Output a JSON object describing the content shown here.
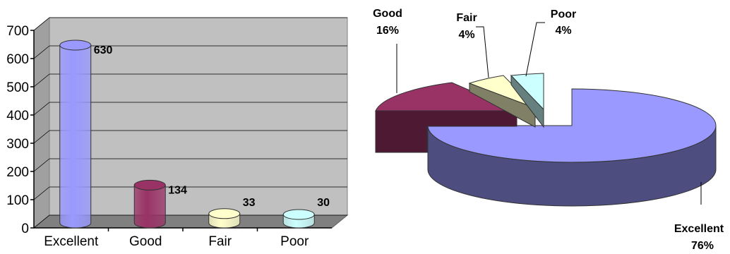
{
  "colors": {
    "Excellent": "#9999ff",
    "Good": "#993366",
    "Fair": "#ffffcc",
    "Poor": "#ccffff",
    "plot_bg": "#c0c0c0"
  },
  "chart_data": [
    {
      "type": "bar",
      "categories": [
        "Excellent",
        "Good",
        "Fair",
        "Poor"
      ],
      "values": [
        630,
        134,
        33,
        30
      ],
      "data_labels": [
        "630",
        "134",
        "33",
        "30"
      ],
      "yticks": [
        "0",
        "100",
        "200",
        "300",
        "400",
        "500",
        "600",
        "700"
      ],
      "ylim": [
        0,
        700
      ],
      "title": "",
      "xlabel": "",
      "ylabel": "",
      "grid": true,
      "style": "3d-cylinder"
    },
    {
      "type": "pie",
      "labels": [
        "Excellent",
        "Good",
        "Fair",
        "Poor"
      ],
      "values": [
        76,
        16,
        4,
        4
      ],
      "percent_labels": [
        "76%",
        "16%",
        "4%",
        "4%"
      ],
      "title": "",
      "style": "3d-exploded"
    }
  ]
}
